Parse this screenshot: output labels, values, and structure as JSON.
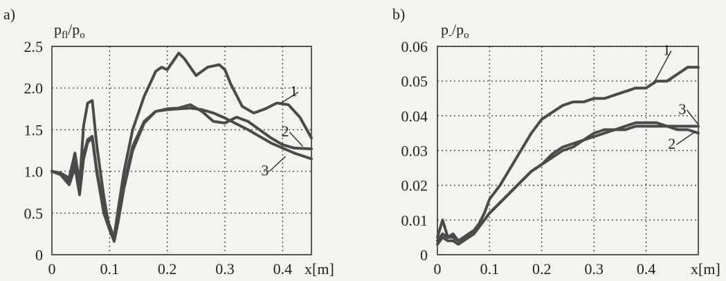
{
  "chart_data": [
    {
      "type": "line",
      "panel_label": "a)",
      "ylabel": "p_fl/p_o",
      "ylabel_main": "p",
      "ylabel_sub": "fl",
      "ylabel_den_main": "/p",
      "ylabel_den_sub": "o",
      "xlabel": "x[m]",
      "xlim": [
        0,
        0.45
      ],
      "ylim": [
        0,
        2.5
      ],
      "xticks": [
        "0",
        "0.1",
        "0.2",
        "0.3",
        "0.4"
      ],
      "xtick_values": [
        0,
        0.1,
        0.2,
        0.3,
        0.4
      ],
      "yticks": [
        "0",
        "0.5",
        "1.0",
        "1.5",
        "2.0",
        "2.5"
      ],
      "ytick_values": [
        0,
        0.5,
        1.0,
        1.5,
        2.0,
        2.5
      ],
      "grid": true,
      "series": [
        {
          "name": "1",
          "label_at": [
            0.42,
            1.9
          ],
          "leader_to": [
            0.395,
            1.81
          ],
          "x": [
            0,
            0.015,
            0.03,
            0.04,
            0.048,
            0.055,
            0.062,
            0.07,
            0.078,
            0.09,
            0.1,
            0.108,
            0.115,
            0.125,
            0.14,
            0.16,
            0.18,
            0.19,
            0.2,
            0.21,
            0.22,
            0.23,
            0.25,
            0.27,
            0.29,
            0.3,
            0.31,
            0.33,
            0.35,
            0.37,
            0.39,
            0.41,
            0.43,
            0.45
          ],
          "y": [
            1.0,
            0.98,
            0.92,
            1.22,
            0.85,
            1.55,
            1.82,
            1.85,
            1.3,
            0.7,
            0.3,
            0.22,
            0.55,
            1.0,
            1.5,
            1.9,
            2.2,
            2.25,
            2.22,
            2.32,
            2.42,
            2.35,
            2.15,
            2.25,
            2.28,
            2.22,
            2.05,
            1.78,
            1.7,
            1.75,
            1.82,
            1.8,
            1.65,
            1.4
          ]
        },
        {
          "name": "2",
          "label_at": [
            0.405,
            1.42
          ],
          "leader_to": [
            0.435,
            1.3
          ],
          "x": [
            0,
            0.015,
            0.03,
            0.04,
            0.048,
            0.055,
            0.062,
            0.07,
            0.078,
            0.09,
            0.1,
            0.108,
            0.115,
            0.125,
            0.14,
            0.16,
            0.18,
            0.2,
            0.22,
            0.24,
            0.26,
            0.28,
            0.3,
            0.32,
            0.34,
            0.36,
            0.38,
            0.4,
            0.42,
            0.45
          ],
          "y": [
            1.0,
            0.98,
            0.88,
            1.1,
            0.8,
            1.2,
            1.38,
            1.42,
            1.0,
            0.55,
            0.35,
            0.2,
            0.45,
            0.85,
            1.3,
            1.6,
            1.72,
            1.75,
            1.76,
            1.8,
            1.72,
            1.6,
            1.58,
            1.65,
            1.6,
            1.5,
            1.4,
            1.32,
            1.28,
            1.27
          ]
        },
        {
          "name": "3",
          "label_at": [
            0.37,
            0.95
          ],
          "leader_to": [
            0.405,
            1.18
          ],
          "x": [
            0,
            0.015,
            0.03,
            0.04,
            0.048,
            0.055,
            0.062,
            0.07,
            0.078,
            0.09,
            0.1,
            0.108,
            0.115,
            0.125,
            0.14,
            0.16,
            0.18,
            0.2,
            0.22,
            0.24,
            0.26,
            0.28,
            0.3,
            0.32,
            0.34,
            0.36,
            0.38,
            0.4,
            0.42,
            0.45
          ],
          "y": [
            1.0,
            0.96,
            0.84,
            1.05,
            0.72,
            1.15,
            1.35,
            1.4,
            0.98,
            0.5,
            0.3,
            0.16,
            0.4,
            0.8,
            1.25,
            1.58,
            1.72,
            1.74,
            1.75,
            1.76,
            1.74,
            1.7,
            1.64,
            1.57,
            1.5,
            1.42,
            1.34,
            1.28,
            1.22,
            1.15
          ]
        }
      ]
    },
    {
      "type": "line",
      "panel_label": "b)",
      "ylabel": "p_-/p_o",
      "ylabel_main": "p",
      "ylabel_sub": "-",
      "ylabel_den_main": "/p",
      "ylabel_den_sub": "o",
      "xlabel": "x[m]",
      "xlim": [
        0,
        0.5
      ],
      "ylim": [
        0,
        0.06
      ],
      "xticks": [
        "0",
        "0.1",
        "0.2",
        "0.3",
        "0.4"
      ],
      "xtick_values": [
        0,
        0.1,
        0.2,
        0.3,
        0.4
      ],
      "yticks": [
        "0",
        "0.01",
        "0.02",
        "0.03",
        "0.04",
        "0.05",
        "0.06"
      ],
      "ytick_values": [
        0,
        0.01,
        0.02,
        0.03,
        0.04,
        0.05,
        0.06
      ],
      "grid": true,
      "series": [
        {
          "name": "1",
          "label_at": [
            0.44,
            0.0575
          ],
          "leader_to": [
            0.415,
            0.0495
          ],
          "x": [
            0,
            0.01,
            0.02,
            0.03,
            0.04,
            0.05,
            0.06,
            0.07,
            0.08,
            0.09,
            0.1,
            0.12,
            0.14,
            0.16,
            0.18,
            0.2,
            0.22,
            0.24,
            0.26,
            0.28,
            0.3,
            0.32,
            0.34,
            0.36,
            0.38,
            0.4,
            0.42,
            0.44,
            0.46,
            0.48,
            0.5
          ],
          "y": [
            0.005,
            0.01,
            0.005,
            0.006,
            0.004,
            0.004,
            0.006,
            0.007,
            0.009,
            0.012,
            0.016,
            0.02,
            0.025,
            0.03,
            0.035,
            0.039,
            0.041,
            0.043,
            0.044,
            0.044,
            0.045,
            0.045,
            0.046,
            0.047,
            0.048,
            0.048,
            0.05,
            0.05,
            0.052,
            0.054,
            0.054
          ]
        },
        {
          "name": "2",
          "label_at": [
            0.45,
            0.0305
          ],
          "leader_to": [
            0.495,
            0.0355
          ],
          "x": [
            0,
            0.01,
            0.02,
            0.03,
            0.04,
            0.05,
            0.06,
            0.07,
            0.08,
            0.09,
            0.1,
            0.12,
            0.14,
            0.16,
            0.18,
            0.2,
            0.22,
            0.24,
            0.26,
            0.28,
            0.3,
            0.32,
            0.34,
            0.36,
            0.38,
            0.4,
            0.42,
            0.44,
            0.46,
            0.48,
            0.5
          ],
          "y": [
            0.003,
            0.005,
            0.004,
            0.004,
            0.003,
            0.004,
            0.005,
            0.006,
            0.008,
            0.01,
            0.012,
            0.015,
            0.018,
            0.021,
            0.024,
            0.026,
            0.028,
            0.03,
            0.031,
            0.033,
            0.034,
            0.035,
            0.036,
            0.036,
            0.037,
            0.037,
            0.037,
            0.037,
            0.036,
            0.036,
            0.035
          ]
        },
        {
          "name": "3",
          "label_at": [
            0.47,
            0.0405
          ],
          "leader_to": [
            0.5,
            0.0375
          ],
          "x": [
            0,
            0.01,
            0.02,
            0.03,
            0.04,
            0.05,
            0.06,
            0.07,
            0.08,
            0.09,
            0.1,
            0.12,
            0.14,
            0.16,
            0.18,
            0.2,
            0.22,
            0.24,
            0.26,
            0.28,
            0.3,
            0.32,
            0.34,
            0.36,
            0.38,
            0.4,
            0.42,
            0.44,
            0.46,
            0.48,
            0.5
          ],
          "y": [
            0.004,
            0.006,
            0.005,
            0.005,
            0.004,
            0.005,
            0.006,
            0.007,
            0.008,
            0.01,
            0.012,
            0.015,
            0.018,
            0.021,
            0.024,
            0.026,
            0.029,
            0.031,
            0.032,
            0.033,
            0.035,
            0.036,
            0.036,
            0.037,
            0.038,
            0.038,
            0.038,
            0.037,
            0.037,
            0.037,
            0.037
          ]
        }
      ]
    }
  ]
}
